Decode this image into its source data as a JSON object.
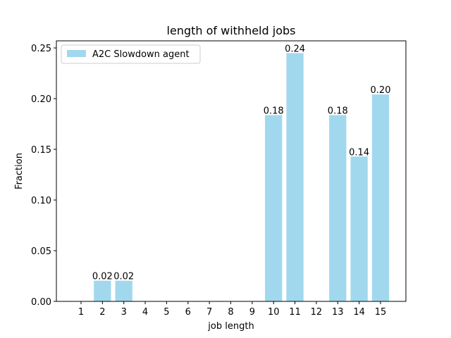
{
  "chart_data": {
    "type": "bar",
    "title": "length of withheld jobs",
    "xlabel": "job length",
    "ylabel": "Fraction",
    "categories": [
      "1",
      "2",
      "3",
      "4",
      "5",
      "6",
      "7",
      "8",
      "9",
      "10",
      "11",
      "12",
      "13",
      "14",
      "15"
    ],
    "series": [
      {
        "name": "A2C Slowdown agent",
        "color": "#a1d8ee",
        "values": [
          0,
          0.0204,
          0.0204,
          0,
          0,
          0,
          0,
          0,
          0,
          0.1837,
          0.2449,
          0,
          0.1837,
          0.1429,
          0.2041
        ],
        "labels": [
          "",
          "0.02",
          "0.02",
          "",
          "",
          "",
          "",
          "",
          "",
          "0.18",
          "0.24",
          "",
          "0.18",
          "0.14",
          "0.20"
        ]
      }
    ],
    "yticks": [
      "0.00",
      "0.05",
      "0.10",
      "0.15",
      "0.20",
      "0.25"
    ],
    "ylim": [
      0,
      0.257
    ],
    "grid": false,
    "legend_position": "top-left"
  }
}
